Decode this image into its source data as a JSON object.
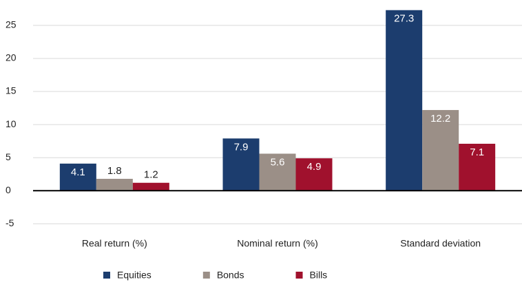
{
  "chart_data": {
    "type": "bar",
    "categories": [
      "Real return (%)",
      "Nominal return (%)",
      "Standard deviation"
    ],
    "series": [
      {
        "name": "Equities",
        "color": "#1c3d6e",
        "values": [
          4.1,
          7.9,
          27.3
        ]
      },
      {
        "name": "Bonds",
        "color": "#9b8f87",
        "values": [
          1.8,
          5.6,
          12.2
        ]
      },
      {
        "name": "Bills",
        "color": "#a0112d",
        "values": [
          1.2,
          4.9,
          7.1
        ]
      }
    ],
    "ylim": [
      -6,
      28
    ],
    "yticks": [
      -5,
      0,
      5,
      10,
      15,
      20,
      25
    ],
    "grid": true,
    "legend": "bottom"
  }
}
